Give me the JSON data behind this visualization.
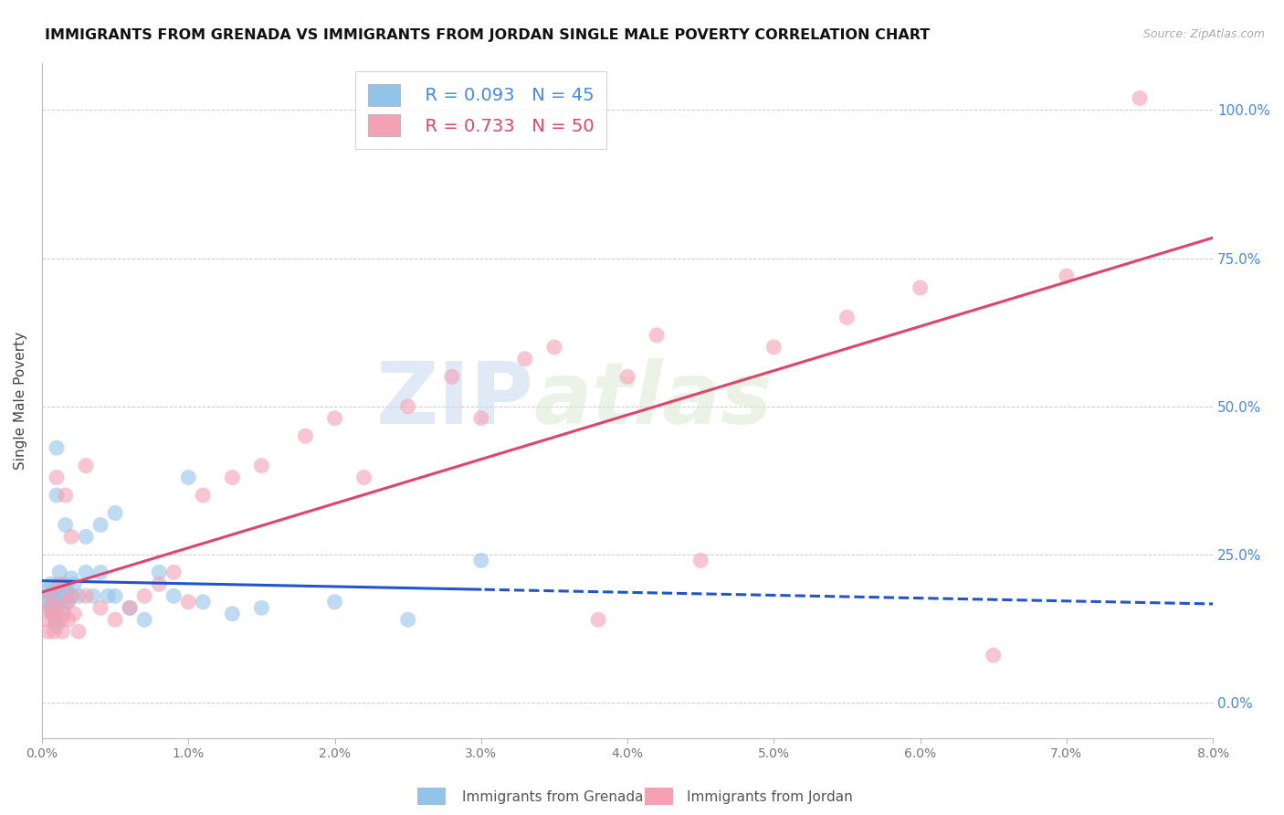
{
  "title": "IMMIGRANTS FROM GRENADA VS IMMIGRANTS FROM JORDAN SINGLE MALE POVERTY CORRELATION CHART",
  "source": "Source: ZipAtlas.com",
  "ylabel": "Single Male Poverty",
  "ytick_labels": [
    "0.0%",
    "25.0%",
    "50.0%",
    "75.0%",
    "100.0%"
  ],
  "ytick_values": [
    0.0,
    0.25,
    0.5,
    0.75,
    1.0
  ],
  "xtick_values": [
    0.0,
    0.01,
    0.02,
    0.03,
    0.04,
    0.05,
    0.06,
    0.07,
    0.08
  ],
  "xtick_labels": [
    "0.0%",
    "1.0%",
    "2.0%",
    "3.0%",
    "4.0%",
    "5.0%",
    "6.0%",
    "7.0%",
    "8.0%"
  ],
  "xmin": 0.0,
  "xmax": 0.08,
  "ymin": -0.06,
  "ymax": 1.08,
  "grenada_R": 0.093,
  "grenada_N": 45,
  "jordan_R": 0.733,
  "jordan_N": 50,
  "grenada_color": "#93c4e8",
  "jordan_color": "#f4a0b5",
  "grenada_line_color": "#2255cc",
  "jordan_line_color": "#e0446a",
  "watermark_zip": "ZIP",
  "watermark_atlas": "atlas",
  "legend_label_grenada": "Immigrants from Grenada",
  "legend_label_jordan": "Immigrants from Jordan",
  "grenada_x": [
    0.0003,
    0.0004,
    0.0005,
    0.0005,
    0.0006,
    0.0007,
    0.0007,
    0.0008,
    0.0008,
    0.0009,
    0.0009,
    0.001,
    0.001,
    0.001,
    0.001,
    0.0012,
    0.0013,
    0.0014,
    0.0015,
    0.0016,
    0.0017,
    0.0018,
    0.002,
    0.002,
    0.0022,
    0.0025,
    0.003,
    0.003,
    0.0035,
    0.004,
    0.004,
    0.0045,
    0.005,
    0.005,
    0.006,
    0.007,
    0.008,
    0.009,
    0.01,
    0.011,
    0.013,
    0.015,
    0.02,
    0.025,
    0.03
  ],
  "grenada_y": [
    0.17,
    0.19,
    0.16,
    0.18,
    0.2,
    0.17,
    0.15,
    0.18,
    0.16,
    0.19,
    0.14,
    0.43,
    0.35,
    0.17,
    0.13,
    0.22,
    0.18,
    0.16,
    0.2,
    0.3,
    0.19,
    0.17,
    0.21,
    0.18,
    0.2,
    0.18,
    0.28,
    0.22,
    0.18,
    0.3,
    0.22,
    0.18,
    0.32,
    0.18,
    0.16,
    0.14,
    0.22,
    0.18,
    0.38,
    0.17,
    0.15,
    0.16,
    0.17,
    0.14,
    0.24
  ],
  "jordan_x": [
    0.0003,
    0.0004,
    0.0005,
    0.0006,
    0.0007,
    0.0008,
    0.0009,
    0.001,
    0.001,
    0.0012,
    0.0013,
    0.0014,
    0.0015,
    0.0016,
    0.0017,
    0.0018,
    0.002,
    0.002,
    0.0022,
    0.0025,
    0.003,
    0.003,
    0.004,
    0.005,
    0.006,
    0.007,
    0.008,
    0.009,
    0.01,
    0.011,
    0.013,
    0.015,
    0.018,
    0.02,
    0.022,
    0.025,
    0.028,
    0.03,
    0.033,
    0.035,
    0.038,
    0.04,
    0.042,
    0.045,
    0.05,
    0.055,
    0.06,
    0.065,
    0.07,
    0.075
  ],
  "jordan_y": [
    0.14,
    0.12,
    0.16,
    0.18,
    0.15,
    0.12,
    0.14,
    0.38,
    0.16,
    0.2,
    0.14,
    0.12,
    0.15,
    0.35,
    0.17,
    0.14,
    0.28,
    0.18,
    0.15,
    0.12,
    0.4,
    0.18,
    0.16,
    0.14,
    0.16,
    0.18,
    0.2,
    0.22,
    0.17,
    0.35,
    0.38,
    0.4,
    0.45,
    0.48,
    0.38,
    0.5,
    0.55,
    0.48,
    0.58,
    0.6,
    0.14,
    0.55,
    0.62,
    0.24,
    0.6,
    0.65,
    0.7,
    0.08,
    0.72,
    1.02
  ]
}
